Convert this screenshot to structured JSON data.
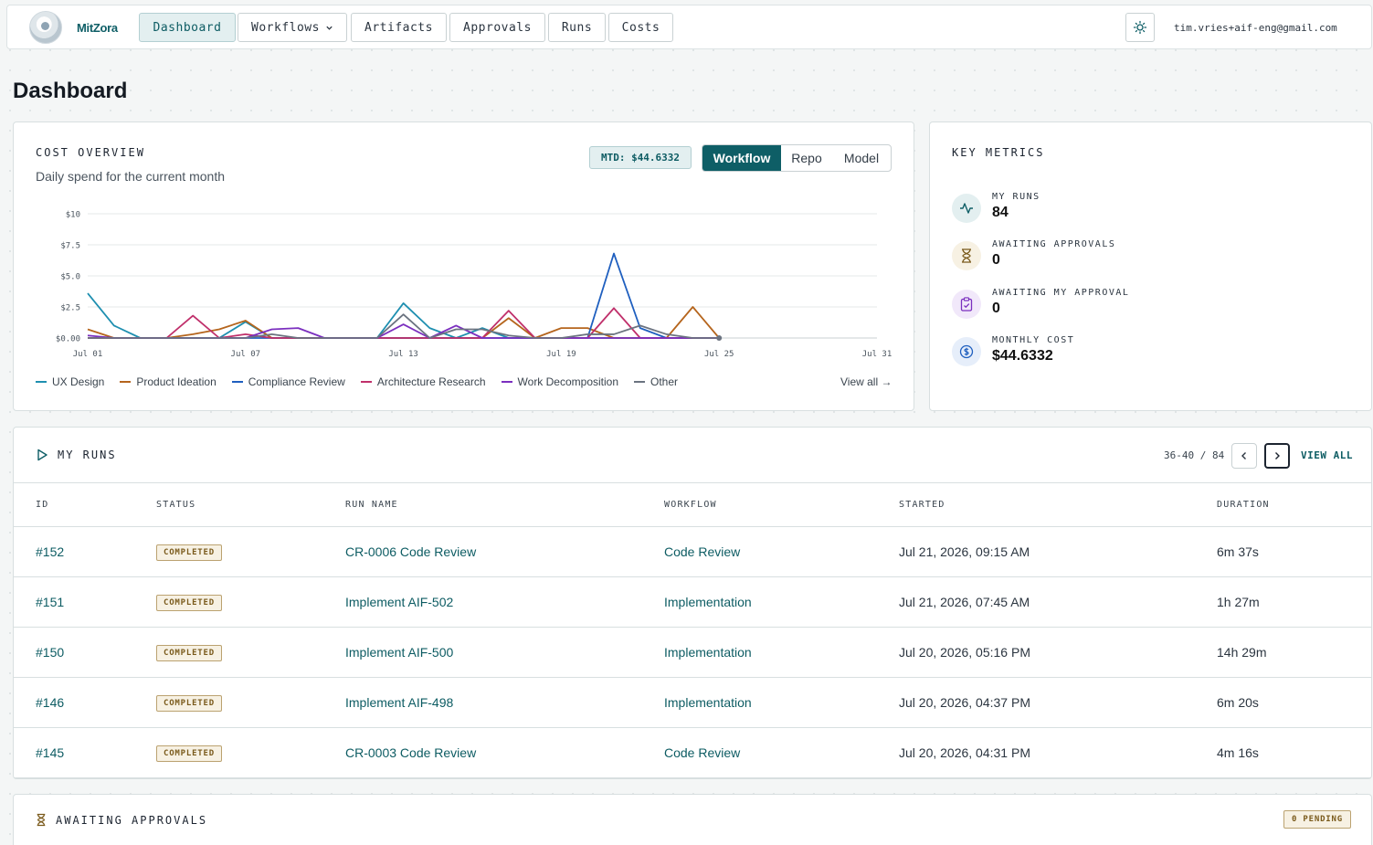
{
  "nav": {
    "brand": "MitZora",
    "items": [
      "Dashboard",
      "Workflows",
      "Artifacts",
      "Approvals",
      "Runs",
      "Costs"
    ],
    "user": "tim.vries+aif-eng@gmail.com"
  },
  "page_title": "Dashboard",
  "cost": {
    "title": "COST OVERVIEW",
    "subtitle": "Daily spend for the current month",
    "mtd": "MTD: $44.6332",
    "tabs": [
      "Workflow",
      "Repo",
      "Model"
    ],
    "active_tab": "Workflow",
    "view_all": "View all →"
  },
  "metrics": {
    "title": "KEY METRICS",
    "items": [
      {
        "label": "MY RUNS",
        "value": "84",
        "icon": "activity-icon",
        "color": "#0e5e66"
      },
      {
        "label": "AWAITING APPROVALS",
        "value": "0",
        "icon": "hourglass-icon",
        "color": "#7a5a1b"
      },
      {
        "label": "AWAITING MY APPROVAL",
        "value": "0",
        "icon": "clipboard-check-icon",
        "color": "#7b2fbf"
      },
      {
        "label": "MONTHLY COST",
        "value": "$44.6332",
        "icon": "dollar-icon",
        "color": "#1f5fbf"
      }
    ]
  },
  "runs": {
    "title": "MY RUNS",
    "range": "36-40 / 84",
    "view_all": "VIEW ALL",
    "columns": [
      "ID",
      "STATUS",
      "RUN NAME",
      "WORKFLOW",
      "STARTED",
      "DURATION"
    ],
    "rows": [
      {
        "id": "#152",
        "status": "COMPLETED",
        "name": "CR-0006 Code Review",
        "workflow": "Code Review",
        "started": "Jul 21, 2026, 09:15 AM",
        "duration": "6m 37s"
      },
      {
        "id": "#151",
        "status": "COMPLETED",
        "name": "Implement AIF-502",
        "workflow": "Implementation",
        "started": "Jul 21, 2026, 07:45 AM",
        "duration": "1h 27m"
      },
      {
        "id": "#150",
        "status": "COMPLETED",
        "name": "Implement AIF-500",
        "workflow": "Implementation",
        "started": "Jul 20, 2026, 05:16 PM",
        "duration": "14h 29m"
      },
      {
        "id": "#146",
        "status": "COMPLETED",
        "name": "Implement AIF-498",
        "workflow": "Implementation",
        "started": "Jul 20, 2026, 04:37 PM",
        "duration": "6m 20s"
      },
      {
        "id": "#145",
        "status": "COMPLETED",
        "name": "CR-0003 Code Review",
        "workflow": "Code Review",
        "started": "Jul 20, 2026, 04:31 PM",
        "duration": "4m 16s"
      }
    ]
  },
  "approvals": {
    "title": "AWAITING APPROVALS",
    "pending": "0 PENDING"
  },
  "chart_data": {
    "type": "line",
    "title": "",
    "xlabel": "",
    "ylabel": "",
    "x_days": [
      1,
      2,
      3,
      4,
      5,
      6,
      7,
      8,
      9,
      10,
      11,
      12,
      13,
      14,
      15,
      16,
      17,
      18,
      19,
      20,
      21,
      22,
      23,
      24,
      25
    ],
    "x_ticks": [
      "Jul 01",
      "Jul 07",
      "Jul 13",
      "Jul 19",
      "Jul 25",
      "Jul 31"
    ],
    "x_tick_days": [
      1,
      7,
      13,
      19,
      25,
      31
    ],
    "xlim": [
      1,
      31
    ],
    "y_ticks": [
      "$0.00",
      "$2.5",
      "$5.0",
      "$7.5",
      "$10"
    ],
    "y_tick_values": [
      0,
      2.5,
      5,
      7.5,
      10
    ],
    "ylim": [
      0,
      10
    ],
    "grid": true,
    "legend_position": "bottom",
    "series": [
      {
        "name": "UX Design",
        "color": "#1e8fb0",
        "values": [
          3.6,
          1.0,
          0,
          0,
          0,
          0,
          1.3,
          0,
          0,
          0,
          0,
          0,
          2.8,
          0.8,
          0,
          0.8,
          0,
          0,
          0,
          0,
          0,
          0,
          0,
          0,
          0
        ]
      },
      {
        "name": "Product Ideation",
        "color": "#b5651d",
        "values": [
          0.7,
          0,
          0,
          0,
          0.3,
          0.7,
          1.4,
          0,
          0,
          0,
          0,
          0,
          0,
          0,
          0,
          0,
          1.6,
          0,
          0.8,
          0.8,
          0,
          0,
          0,
          2.5,
          0
        ]
      },
      {
        "name": "Compliance Review",
        "color": "#1f5fbf",
        "values": [
          0,
          0,
          0,
          0,
          0,
          0,
          0,
          0,
          0,
          0,
          0,
          0,
          0,
          0,
          0,
          0,
          0,
          0,
          0,
          0,
          6.8,
          0.8,
          0,
          0,
          0
        ]
      },
      {
        "name": "Architecture Research",
        "color": "#c0306b",
        "values": [
          0,
          0,
          0,
          0,
          1.8,
          0,
          0.3,
          0,
          0,
          0,
          0,
          0,
          0,
          0,
          0,
          0,
          2.2,
          0,
          0,
          0,
          2.4,
          0,
          0,
          0,
          0
        ]
      },
      {
        "name": "Work Decomposition",
        "color": "#7b2fbf",
        "values": [
          0.2,
          0,
          0,
          0,
          0,
          0,
          0,
          0.7,
          0.8,
          0,
          0,
          0,
          1.1,
          0,
          1.0,
          0,
          0,
          0,
          0,
          0,
          0,
          0,
          0,
          0,
          0
        ]
      },
      {
        "name": "Other",
        "color": "#6b7380",
        "values": [
          0,
          0,
          0,
          0,
          0,
          0,
          0,
          0.3,
          0,
          0,
          0,
          0,
          1.9,
          0,
          0.7,
          0.7,
          0.2,
          0,
          0,
          0.3,
          0.3,
          1.0,
          0.3,
          0,
          0
        ]
      }
    ]
  }
}
